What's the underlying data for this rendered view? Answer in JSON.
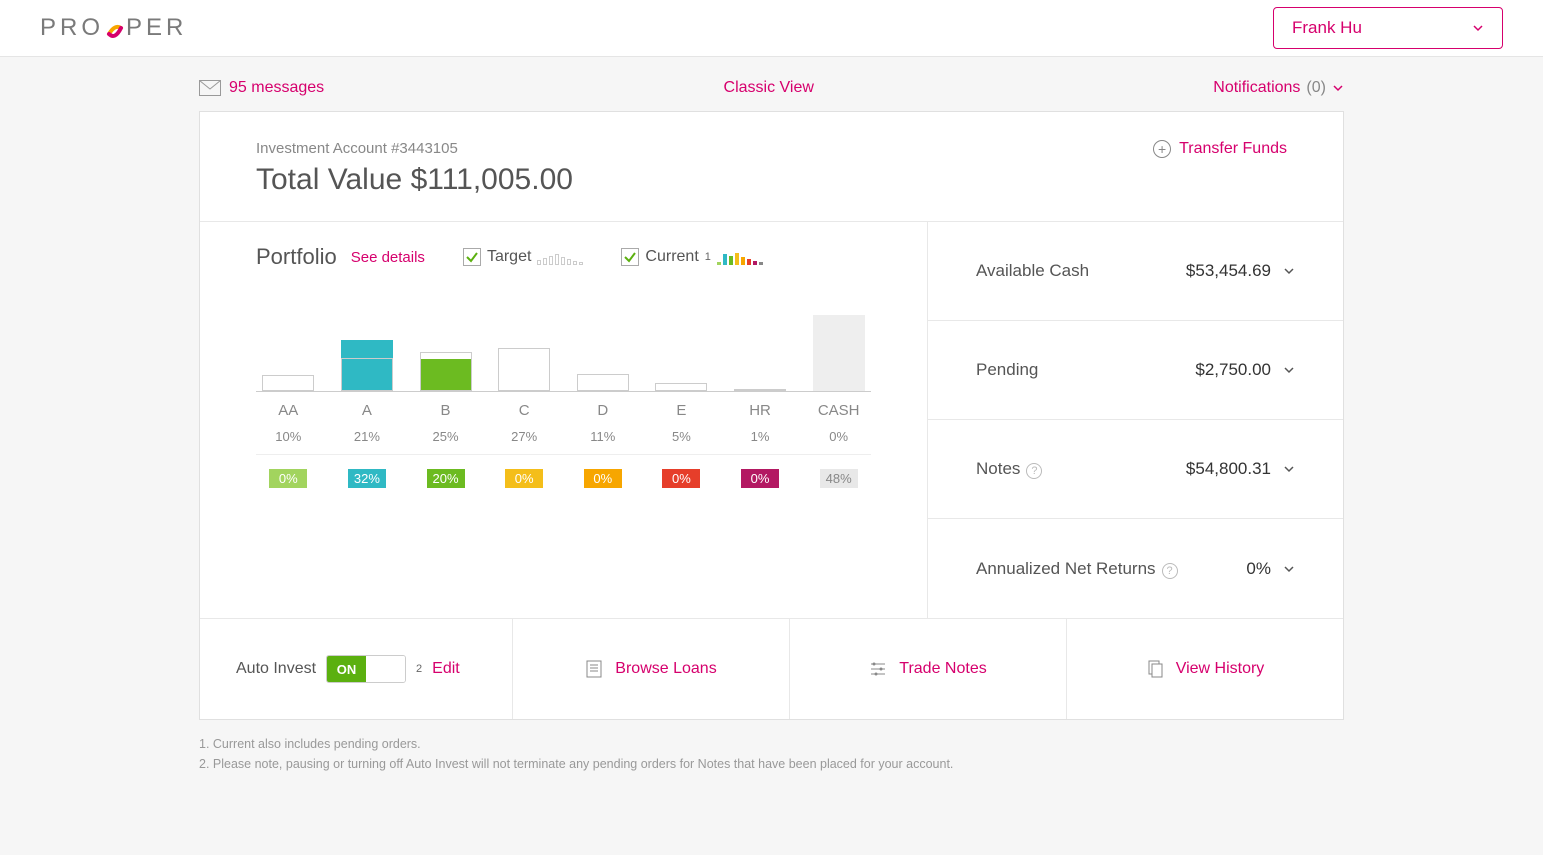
{
  "brand": {
    "pre": "PRO",
    "post": "PER"
  },
  "user": {
    "name": "Frank Hu"
  },
  "subbar": {
    "messages_label": "95 messages",
    "classic_view": "Classic View",
    "notifications_label": "Notifications",
    "notifications_count": "(0)"
  },
  "account": {
    "line": "Investment Account #3443105",
    "total_label": "Total Value",
    "total_value": "$111,005.00",
    "transfer": "Transfer Funds"
  },
  "portfolio": {
    "title": "Portfolio",
    "see_details": "See details",
    "target_label": "Target",
    "current_label": "Current",
    "current_footnote_mark": "1",
    "chart": {
      "type": "bar",
      "max_pct": 50,
      "categories": [
        "AA",
        "A",
        "B",
        "C",
        "D",
        "E",
        "HR",
        "CASH"
      ],
      "target_pct": [
        10,
        21,
        25,
        27,
        11,
        5,
        1,
        0
      ],
      "current_pct": [
        0,
        32,
        20,
        0,
        0,
        0,
        0,
        48
      ],
      "current_colors": [
        "#a2d45e",
        "#2fb9c4",
        "#6cbb21",
        "#f4be1a",
        "#f7a600",
        "#e63e2a",
        "#b31862",
        "#e8e8e8"
      ],
      "mini_target_heights": [
        5,
        7,
        9,
        11,
        8,
        6,
        4,
        3
      ],
      "mini_current_heights": [
        3,
        11,
        9,
        12,
        8,
        6,
        4,
        3
      ],
      "mini_current_colors": [
        "#a2d45e",
        "#2fb9c4",
        "#6cbb21",
        "#f4be1a",
        "#f7a600",
        "#e63e2a",
        "#b31862",
        "#888"
      ]
    }
  },
  "stats": {
    "cash": {
      "label": "Available Cash",
      "value": "$53,454.69"
    },
    "pending": {
      "label": "Pending",
      "value": "$2,750.00"
    },
    "notes": {
      "label": "Notes",
      "value": "$54,800.31"
    },
    "returns": {
      "label": "Annualized Net Returns",
      "value": "0%"
    }
  },
  "actions": {
    "auto_invest": "Auto Invest",
    "on": "ON",
    "footnote_mark": "2",
    "edit": "Edit",
    "browse": "Browse Loans",
    "trade": "Trade Notes",
    "history": "View History"
  },
  "footnotes": {
    "f1": "1. Current also includes pending orders.",
    "f2": "2. Please note, pausing or turning off Auto Invest will not terminate any pending orders for Notes that have been placed for your account."
  }
}
